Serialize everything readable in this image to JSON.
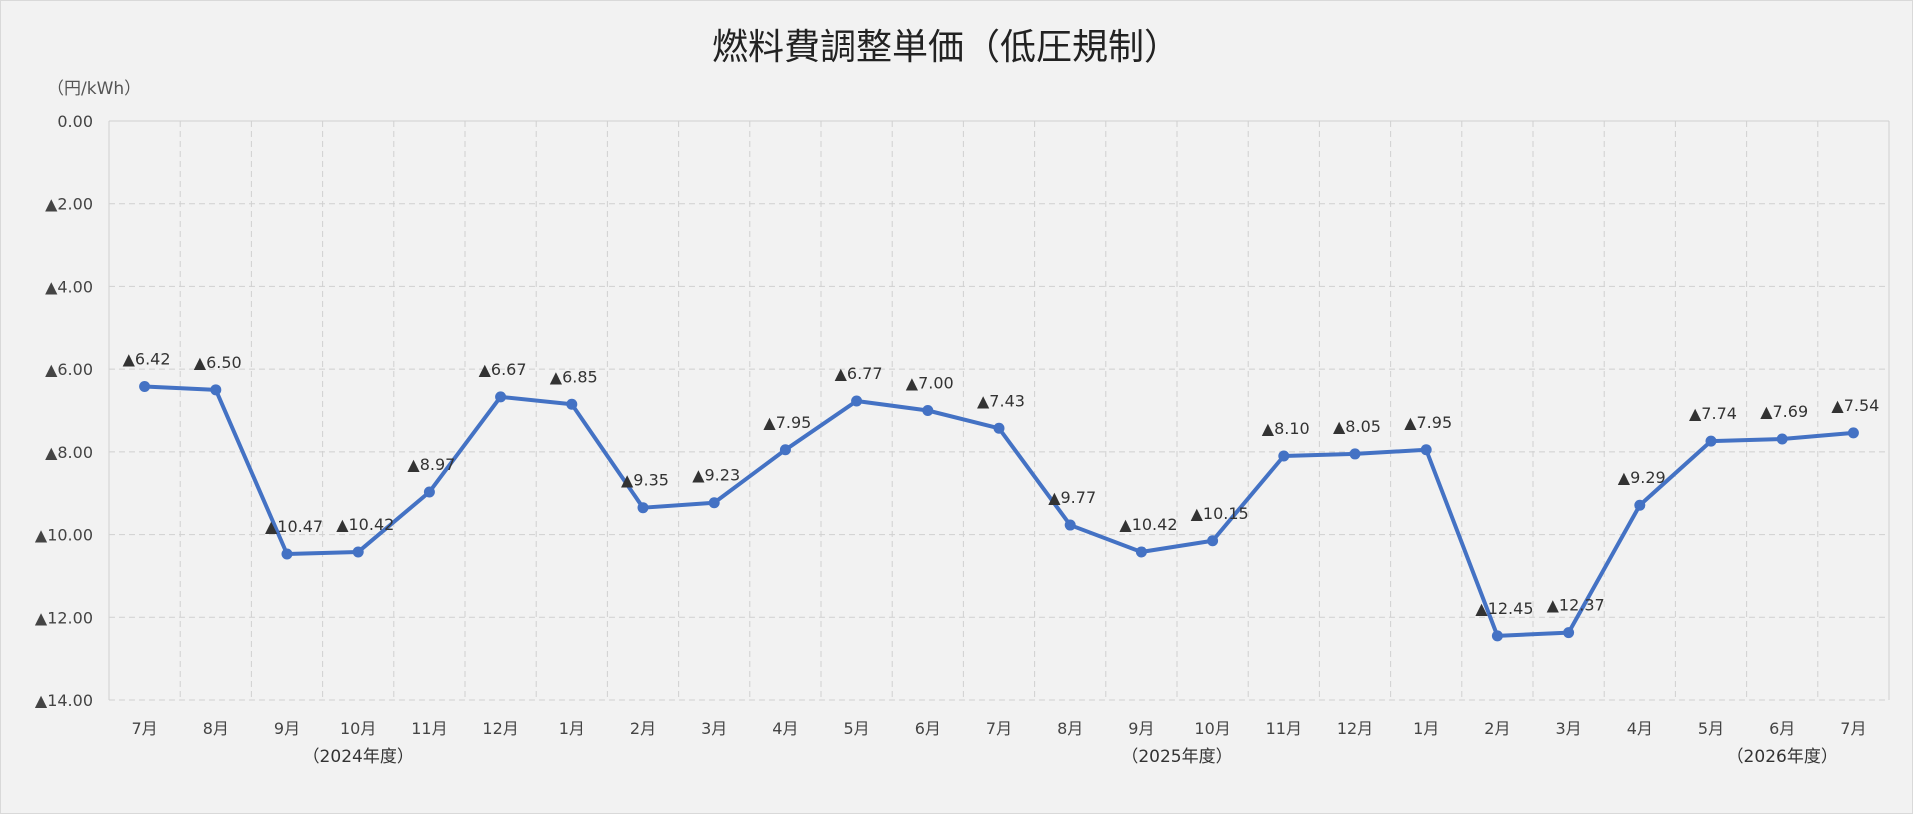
{
  "chart_data": {
    "type": "line",
    "title": "燃料費調整単価（低圧規制）",
    "unit_label": "（円/kWh）",
    "ylim": [
      0,
      14
    ],
    "y_axis_inverted": true,
    "y_ticks": [
      "0.00",
      "▲2.00",
      "▲4.00",
      "▲6.00",
      "▲8.00",
      "▲10.00",
      "▲12.00",
      "▲14.00"
    ],
    "grid": true,
    "categories": [
      "7月",
      "8月",
      "9月",
      "10月",
      "11月",
      "12月",
      "1月",
      "2月",
      "3月",
      "4月",
      "5月",
      "6月",
      "7月",
      "8月",
      "9月",
      "10月",
      "11月",
      "12月",
      "1月",
      "2月",
      "3月",
      "4月",
      "5月",
      "6月",
      "7月"
    ],
    "fiscal_year_labels": [
      {
        "label": "（2024年度）",
        "index": 3
      },
      {
        "label": "（2025年度）",
        "index": 14.5
      },
      {
        "label": "（2026年度）",
        "index": 23
      }
    ],
    "series": [
      {
        "values": [
          6.42,
          6.5,
          10.47,
          10.42,
          8.97,
          6.67,
          6.85,
          9.35,
          9.23,
          7.95,
          6.77,
          7.0,
          7.43,
          9.77,
          10.42,
          10.15,
          8.1,
          8.05,
          7.95,
          12.45,
          12.37,
          9.29,
          7.74,
          7.69,
          7.54
        ],
        "data_labels": [
          "▲6.42",
          "▲6.50",
          "▲10.47",
          "▲10.42",
          "▲8.97",
          "▲6.67",
          "▲6.85",
          "▲9.35",
          "▲9.23",
          "▲7.95",
          "▲6.77",
          "▲7.00",
          "▲7.43",
          "▲9.77",
          "▲10.42",
          "▲10.15",
          "▲8.10",
          "▲8.05",
          "▲7.95",
          "▲12.45",
          "▲12.37",
          "▲9.29",
          "▲7.74",
          "▲7.69",
          "▲7.54"
        ],
        "color": "#4472c4"
      }
    ]
  }
}
